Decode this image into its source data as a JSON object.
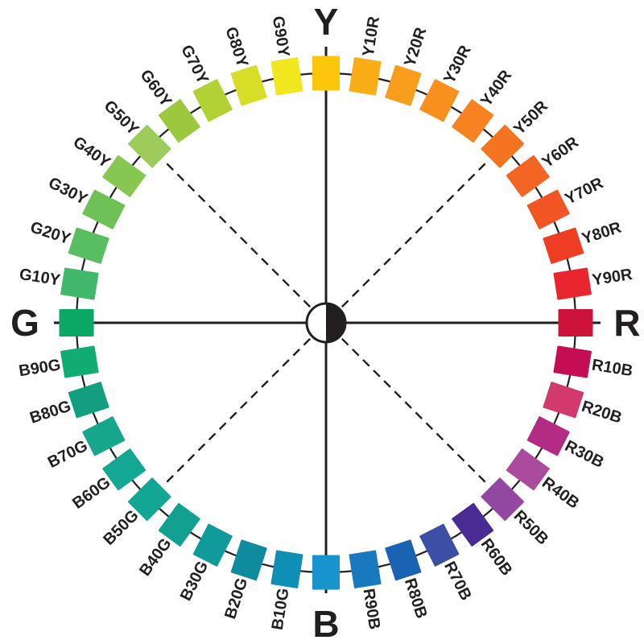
{
  "diagram": {
    "kind": "color-circle",
    "background": "#FFFFFF",
    "line_color": "#231F20",
    "center_icon": "half-white-half-black-circle",
    "entries": [
      {
        "label": "Y",
        "color": "#FDC608",
        "cardinal": true
      },
      {
        "label": "Y10R",
        "color": "#FBAD18",
        "cardinal": false
      },
      {
        "label": "Y20R",
        "color": "#F99E1C",
        "cardinal": false
      },
      {
        "label": "Y30R",
        "color": "#F8901E",
        "cardinal": false
      },
      {
        "label": "Y40R",
        "color": "#F68220",
        "cardinal": false
      },
      {
        "label": "Y50R",
        "color": "#F47421",
        "cardinal": false
      },
      {
        "label": "Y60R",
        "color": "#F26522",
        "cardinal": false
      },
      {
        "label": "Y70R",
        "color": "#F05523",
        "cardinal": false
      },
      {
        "label": "Y80R",
        "color": "#ED3E24",
        "cardinal": false
      },
      {
        "label": "Y90R",
        "color": "#E9252D",
        "cardinal": false
      },
      {
        "label": "R",
        "color": "#CD1339",
        "cardinal": true
      },
      {
        "label": "R10B",
        "color": "#C40E53",
        "cardinal": false
      },
      {
        "label": "R20B",
        "color": "#D23A6E",
        "cardinal": false
      },
      {
        "label": "R30B",
        "color": "#B12C82",
        "cardinal": false
      },
      {
        "label": "R40B",
        "color": "#A94C9D",
        "cardinal": false
      },
      {
        "label": "R50B",
        "color": "#92489E",
        "cardinal": false
      },
      {
        "label": "R60B",
        "color": "#4A2B93",
        "cardinal": false
      },
      {
        "label": "R70B",
        "color": "#3C4FA5",
        "cardinal": false
      },
      {
        "label": "R80B",
        "color": "#1A63B3",
        "cardinal": false
      },
      {
        "label": "R90B",
        "color": "#1879BF",
        "cardinal": false
      },
      {
        "label": "B",
        "color": "#1794CB",
        "cardinal": true
      },
      {
        "label": "B10G",
        "color": "#108FB4",
        "cardinal": false
      },
      {
        "label": "B20G",
        "color": "#0F8B9E",
        "cardinal": false
      },
      {
        "label": "B30G",
        "color": "#119A9A",
        "cardinal": false
      },
      {
        "label": "B40G",
        "color": "#12A191",
        "cardinal": false
      },
      {
        "label": "B50G",
        "color": "#14A695",
        "cardinal": false
      },
      {
        "label": "B60G",
        "color": "#13A794",
        "cardinal": false
      },
      {
        "label": "B70G",
        "color": "#15A68C",
        "cardinal": false
      },
      {
        "label": "B80G",
        "color": "#119F80",
        "cardinal": false
      },
      {
        "label": "B90G",
        "color": "#10AC72",
        "cardinal": false
      },
      {
        "label": "G",
        "color": "#0AA765",
        "cardinal": true
      },
      {
        "label": "G10Y",
        "color": "#41B86B",
        "cardinal": false
      },
      {
        "label": "G20Y",
        "color": "#59BD61",
        "cardinal": false
      },
      {
        "label": "G30Y",
        "color": "#6EC156",
        "cardinal": false
      },
      {
        "label": "G40Y",
        "color": "#85C751",
        "cardinal": false
      },
      {
        "label": "G50Y",
        "color": "#9DCC5A",
        "cardinal": false
      },
      {
        "label": "G60Y",
        "color": "#9CC83E",
        "cardinal": false
      },
      {
        "label": "G70Y",
        "color": "#B1D135",
        "cardinal": false
      },
      {
        "label": "G80Y",
        "color": "#D8DE27",
        "cardinal": false
      },
      {
        "label": "G90Y",
        "color": "#F0E71E",
        "cardinal": false
      }
    ]
  }
}
